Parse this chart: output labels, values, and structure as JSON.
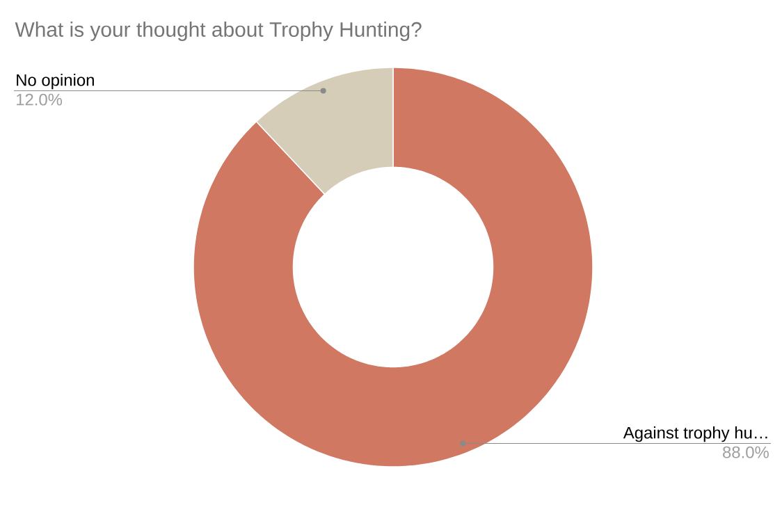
{
  "chart_data": {
    "type": "donut",
    "title": "What is your thought about Trophy Hunting?",
    "categories": [
      "Against trophy hu…",
      "No opinion"
    ],
    "values": [
      88,
      12
    ],
    "colors": [
      "#d07862",
      "#d6cdb8"
    ],
    "value_labels": [
      "88.0%",
      "12.0%"
    ]
  }
}
